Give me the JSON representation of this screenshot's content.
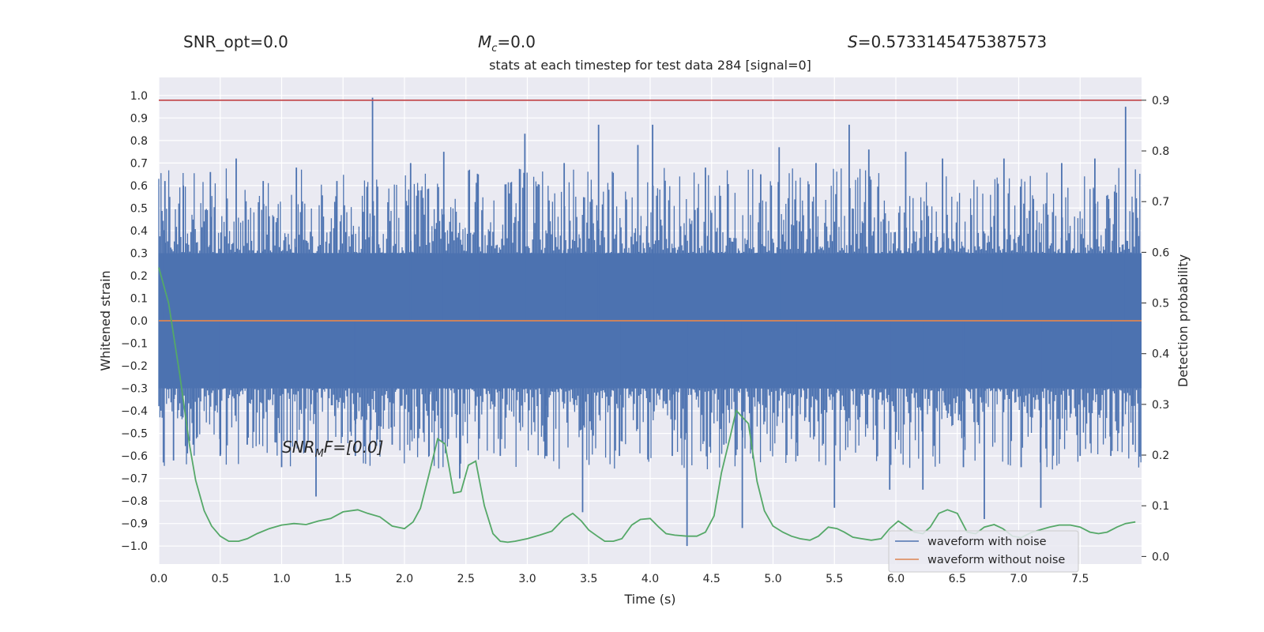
{
  "header": {
    "snr_opt": "SNR_opt=0.0",
    "mc_prefix": "M",
    "mc_sub": "c",
    "mc_suffix": "=0.0",
    "s_prefix": "S",
    "s_suffix": "=0.5733145475387573"
  },
  "chart_data": {
    "type": "line",
    "title": "stats at each timestep for test data 284 [signal=0]",
    "xlabel": "Time (s)",
    "ylabel": "Whitened strain",
    "y2label": "Detection probability",
    "xlim": [
      0.0,
      8.0
    ],
    "ylim": [
      -1.08,
      1.08
    ],
    "y2lim": [
      -0.015,
      0.945
    ],
    "x_ticks": [
      "0.0",
      "0.5",
      "1.0",
      "1.5",
      "2.0",
      "2.5",
      "3.0",
      "3.5",
      "4.0",
      "4.5",
      "5.0",
      "5.5",
      "6.0",
      "6.5",
      "7.0",
      "7.5"
    ],
    "y_ticks": [
      "1.0",
      "0.9",
      "0.8",
      "0.7",
      "0.6",
      "0.5",
      "0.4",
      "0.3",
      "0.2",
      "0.1",
      "0.0",
      "−0.1",
      "−0.2",
      "−0.3",
      "−0.4",
      "−0.5",
      "−0.6",
      "−0.7",
      "−0.8",
      "−0.9",
      "−1.0"
    ],
    "y2_ticks": [
      "0.9",
      "0.8",
      "0.7",
      "0.6",
      "0.5",
      "0.4",
      "0.3",
      "0.2",
      "0.1",
      "0.0"
    ],
    "grid": true,
    "legend_position": "lower-right",
    "series": [
      {
        "name": "waveform with noise",
        "color": "#4c72b0",
        "axis": "left",
        "note_kind": "dense noise, spikes listed",
        "band": [
          -0.3,
          0.3
        ],
        "spikes": [
          {
            "x": 0.05,
            "y": 0.62
          },
          {
            "x": 0.12,
            "y": -0.62
          },
          {
            "x": 0.2,
            "y": 0.6
          },
          {
            "x": 0.28,
            "y": -0.55
          },
          {
            "x": 0.42,
            "y": 0.66
          },
          {
            "x": 0.5,
            "y": -0.6
          },
          {
            "x": 0.63,
            "y": 0.72
          },
          {
            "x": 0.72,
            "y": -0.55
          },
          {
            "x": 0.85,
            "y": 0.62
          },
          {
            "x": 1.0,
            "y": -0.65
          },
          {
            "x": 1.12,
            "y": 0.68
          },
          {
            "x": 1.28,
            "y": -0.78
          },
          {
            "x": 1.45,
            "y": 0.62
          },
          {
            "x": 1.6,
            "y": -0.6
          },
          {
            "x": 1.74,
            "y": 0.99
          },
          {
            "x": 1.9,
            "y": -0.55
          },
          {
            "x": 2.05,
            "y": 0.7
          },
          {
            "x": 2.2,
            "y": -0.6
          },
          {
            "x": 2.32,
            "y": 0.75
          },
          {
            "x": 2.45,
            "y": -0.7
          },
          {
            "x": 2.6,
            "y": 0.65
          },
          {
            "x": 2.78,
            "y": -0.6
          },
          {
            "x": 2.98,
            "y": 0.83
          },
          {
            "x": 3.15,
            "y": -0.6
          },
          {
            "x": 3.3,
            "y": 0.7
          },
          {
            "x": 3.45,
            "y": -0.85
          },
          {
            "x": 3.58,
            "y": 0.87
          },
          {
            "x": 3.75,
            "y": -0.6
          },
          {
            "x": 3.9,
            "y": 0.78
          },
          {
            "x": 4.02,
            "y": 0.87
          },
          {
            "x": 4.18,
            "y": -0.6
          },
          {
            "x": 4.3,
            "y": -1.0
          },
          {
            "x": 4.45,
            "y": 0.68
          },
          {
            "x": 4.6,
            "y": -0.55
          },
          {
            "x": 4.75,
            "y": -0.92
          },
          {
            "x": 4.9,
            "y": 0.65
          },
          {
            "x": 5.05,
            "y": 0.77
          },
          {
            "x": 5.2,
            "y": -0.6
          },
          {
            "x": 5.35,
            "y": 0.7
          },
          {
            "x": 5.5,
            "y": -0.83
          },
          {
            "x": 5.62,
            "y": 0.87
          },
          {
            "x": 5.78,
            "y": 0.76
          },
          {
            "x": 5.95,
            "y": -0.75
          },
          {
            "x": 6.08,
            "y": 0.75
          },
          {
            "x": 6.22,
            "y": -0.75
          },
          {
            "x": 6.38,
            "y": 0.72
          },
          {
            "x": 6.55,
            "y": -0.65
          },
          {
            "x": 6.72,
            "y": -0.88
          },
          {
            "x": 6.88,
            "y": 0.72
          },
          {
            "x": 7.02,
            "y": -0.65
          },
          {
            "x": 7.18,
            "y": -0.83
          },
          {
            "x": 7.35,
            "y": 0.7
          },
          {
            "x": 7.5,
            "y": -0.6
          },
          {
            "x": 7.62,
            "y": 0.72
          },
          {
            "x": 7.75,
            "y": -0.6
          },
          {
            "x": 7.87,
            "y": 0.95
          },
          {
            "x": 7.93,
            "y": -0.55
          }
        ]
      },
      {
        "name": "waveform without noise",
        "color": "#dd8452",
        "axis": "left",
        "x": [
          0.0,
          8.0
        ],
        "y": [
          0.0,
          0.0
        ]
      },
      {
        "color": "#55a868",
        "axis": "right",
        "x": [
          0.0,
          0.08,
          0.17,
          0.25,
          0.3,
          0.37,
          0.43,
          0.5,
          0.57,
          0.65,
          0.72,
          0.8,
          0.9,
          1.0,
          1.1,
          1.2,
          1.3,
          1.4,
          1.5,
          1.62,
          1.7,
          1.8,
          1.9,
          2.0,
          2.07,
          2.13,
          2.2,
          2.27,
          2.33,
          2.4,
          2.46,
          2.52,
          2.58,
          2.65,
          2.72,
          2.78,
          2.84,
          2.9,
          3.0,
          3.1,
          3.2,
          3.3,
          3.37,
          3.44,
          3.5,
          3.57,
          3.63,
          3.7,
          3.77,
          3.85,
          3.92,
          4.0,
          4.07,
          4.13,
          4.2,
          4.3,
          4.38,
          4.45,
          4.52,
          4.58,
          4.65,
          4.7,
          4.75,
          4.8,
          4.87,
          4.93,
          5.0,
          5.08,
          5.15,
          5.22,
          5.3,
          5.37,
          5.45,
          5.52,
          5.58,
          5.65,
          5.72,
          5.8,
          5.88,
          5.95,
          6.02,
          6.08,
          6.15,
          6.22,
          6.28,
          6.35,
          6.42,
          6.5,
          6.58,
          6.65,
          6.72,
          6.8,
          6.87,
          6.95,
          7.02,
          7.1,
          7.18,
          7.25,
          7.33,
          7.42,
          7.5,
          7.58,
          7.65,
          7.72,
          7.8,
          7.87,
          7.95
        ],
        "y": [
          0.57,
          0.5,
          0.36,
          0.22,
          0.15,
          0.09,
          0.06,
          0.04,
          0.03,
          0.03,
          0.035,
          0.045,
          0.055,
          0.062,
          0.065,
          0.063,
          0.07,
          0.075,
          0.088,
          0.092,
          0.085,
          0.078,
          0.06,
          0.055,
          0.068,
          0.095,
          0.162,
          0.232,
          0.222,
          0.125,
          0.128,
          0.18,
          0.188,
          0.1,
          0.045,
          0.03,
          0.028,
          0.03,
          0.035,
          0.042,
          0.05,
          0.075,
          0.085,
          0.07,
          0.052,
          0.04,
          0.03,
          0.03,
          0.035,
          0.062,
          0.073,
          0.075,
          0.058,
          0.045,
          0.042,
          0.04,
          0.04,
          0.048,
          0.08,
          0.165,
          0.235,
          0.288,
          0.275,
          0.262,
          0.148,
          0.09,
          0.06,
          0.048,
          0.04,
          0.035,
          0.032,
          0.04,
          0.058,
          0.055,
          0.048,
          0.038,
          0.035,
          0.032,
          0.035,
          0.055,
          0.07,
          0.06,
          0.048,
          0.045,
          0.058,
          0.085,
          0.092,
          0.085,
          0.048,
          0.045,
          0.058,
          0.063,
          0.055,
          0.04,
          0.037,
          0.047,
          0.053,
          0.058,
          0.062,
          0.062,
          0.058,
          0.048,
          0.045,
          0.048,
          0.058,
          0.065,
          0.068
        ]
      }
    ],
    "threshold": {
      "value": 0.9,
      "axis": "right",
      "color": "#c44e52"
    },
    "annotation": {
      "prefix": "SNR",
      "sub": "M",
      "suffix": "F=[0.0]"
    }
  }
}
